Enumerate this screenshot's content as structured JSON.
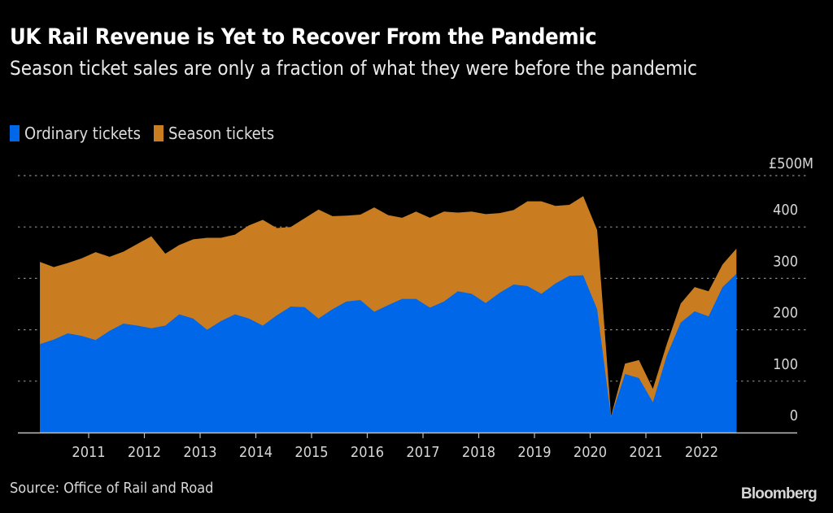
{
  "header": {
    "title": "UK Rail Revenue is Yet to Recover From the Pandemic",
    "subtitle": "Season ticket sales are only a fraction of what they were before the pandemic"
  },
  "legend": [
    {
      "label": "Ordinary tickets",
      "color": "#0068e8"
    },
    {
      "label": "Season tickets",
      "color": "#c97d20"
    }
  ],
  "footer": {
    "source": "Source: Office of Rail and Road",
    "brand": "Bloomberg"
  },
  "chart_data": {
    "type": "area",
    "stacked": true,
    "title": "UK Rail Revenue is Yet to Recover From the Pandemic",
    "subtitle": "Season ticket sales are only a fraction of what they were before the pandemic",
    "xlabel": "",
    "ylabel": "",
    "y_unit_label": "£500M",
    "ylim": [
      0,
      500
    ],
    "y_ticks": [
      0,
      100,
      200,
      300,
      400,
      500
    ],
    "y_tick_labels": [
      "0",
      "100",
      "200",
      "300",
      "400",
      "£500M"
    ],
    "x_tick_labels": [
      "2011",
      "2012",
      "2013",
      "2014",
      "2015",
      "2016",
      "2017",
      "2018",
      "2019",
      "2020",
      "2021",
      "2022"
    ],
    "x_ticks": [
      2011,
      2012,
      2013,
      2014,
      2015,
      2016,
      2017,
      2018,
      2019,
      2020,
      2021,
      2022
    ],
    "xlim": [
      2009.675,
      2023.65
    ],
    "grid": true,
    "legend_position": "top-left",
    "x_start": 2010.125,
    "x_step": 0.25,
    "series": [
      {
        "name": "Ordinary tickets",
        "color": "#0068e8",
        "values": [
          172,
          181,
          193,
          188,
          180,
          198,
          212,
          208,
          203,
          208,
          230,
          222,
          200,
          217,
          230,
          222,
          208,
          228,
          245,
          244,
          222,
          240,
          255,
          258,
          235,
          248,
          260,
          260,
          243,
          255,
          275,
          270,
          252,
          272,
          288,
          285,
          270,
          290,
          305,
          306,
          240,
          30,
          114,
          106,
          59,
          150,
          214,
          236,
          226,
          283,
          309
        ]
      },
      {
        "name": "Season tickets",
        "color": "#c97d20",
        "values": [
          160,
          141,
          137,
          151,
          171,
          144,
          140,
          159,
          179,
          140,
          135,
          154,
          179,
          162,
          155,
          181,
          206,
          170,
          155,
          173,
          212,
          181,
          167,
          166,
          203,
          175,
          158,
          170,
          175,
          175,
          153,
          160,
          173,
          155,
          145,
          165,
          180,
          151,
          138,
          154,
          154,
          2,
          20,
          35,
          26,
          22,
          37,
          47,
          49,
          44,
          49
        ]
      }
    ]
  }
}
